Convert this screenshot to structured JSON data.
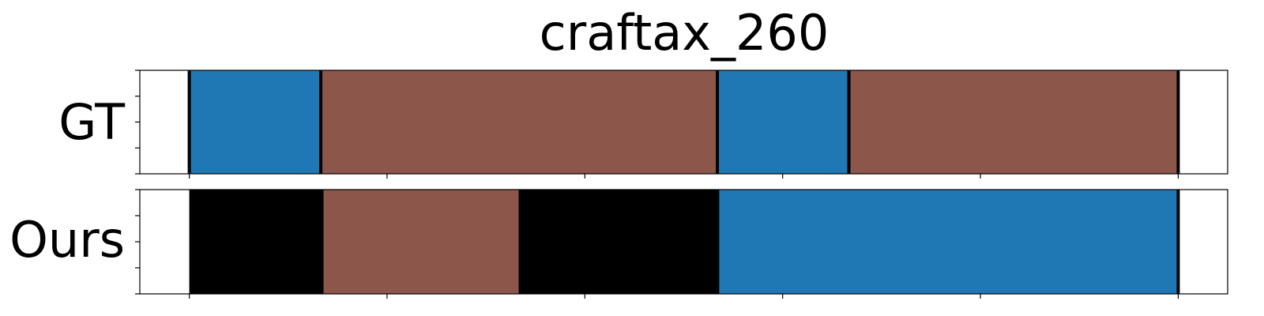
{
  "chart_data": {
    "type": "segmentation-timeline",
    "title": "craftax_260",
    "xlim": [
      0,
      1100
    ],
    "tick_positions": [
      50,
      250,
      450,
      650,
      850,
      1050
    ],
    "rows": [
      {
        "label": "GT",
        "segments": [
          {
            "start": 50,
            "end": 183,
            "color": "#1f77b4"
          },
          {
            "start": 183,
            "end": 584,
            "color": "#8c564b"
          },
          {
            "start": 584,
            "end": 717,
            "color": "#1f77b4"
          },
          {
            "start": 717,
            "end": 1050,
            "color": "#8c564b"
          }
        ],
        "boundaries": [
          50,
          183,
          584,
          717,
          1050
        ]
      },
      {
        "label": "Ours",
        "segments": [
          {
            "start": 50,
            "end": 186,
            "color": "#000000"
          },
          {
            "start": 186,
            "end": 383,
            "color": "#8c564b"
          },
          {
            "start": 383,
            "end": 586,
            "color": "#000000"
          },
          {
            "start": 586,
            "end": 1050,
            "color": "#1f77b4"
          }
        ],
        "boundaries": [
          1050
        ]
      }
    ]
  }
}
